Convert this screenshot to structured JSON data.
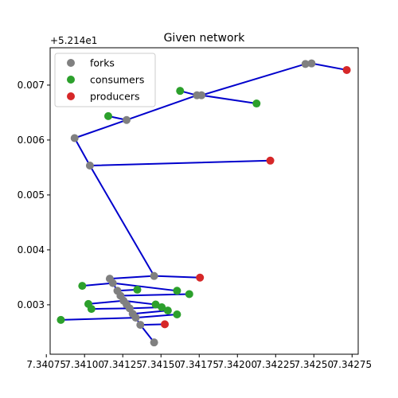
{
  "chart_data": {
    "type": "scatter",
    "title": "Given network",
    "xlabel": "",
    "ylabel": "",
    "xlim": [
      7.340775,
      7.34279
    ],
    "ylim": [
      0.0021,
      0.00768
    ],
    "y_offset_label": "+5.214e1",
    "x_ticks": [
      7.34075,
      7.341,
      7.34125,
      7.3415,
      7.34175,
      7.342,
      7.34225,
      7.3425,
      7.34275
    ],
    "x_tick_labels": [
      "7.34075",
      "7.34100",
      "7.34125",
      "7.34150",
      "7.34175",
      "7.34200",
      "7.34225",
      "7.34250",
      "7.34275"
    ],
    "y_ticks": [
      0.003,
      0.004,
      0.005,
      0.006,
      0.007
    ],
    "y_tick_labels": [
      "0.003",
      "0.004",
      "0.005",
      "0.006",
      "0.007"
    ],
    "grid": false,
    "legend_position": "top-left",
    "edge_color": "#0000cc",
    "series": [
      {
        "name": "forks",
        "color": "#808080",
        "points": [
          [
            7.340935,
            0.006035
          ],
          [
            7.341035,
            0.005535
          ],
          [
            7.341275,
            0.006365
          ],
          [
            7.341735,
            0.006815
          ],
          [
            7.341765,
            0.006815
          ],
          [
            7.342445,
            0.007385
          ],
          [
            7.342485,
            0.007395
          ],
          [
            7.341455,
            0.003525
          ],
          [
            7.341165,
            0.003475
          ],
          [
            7.341185,
            0.003395
          ],
          [
            7.341215,
            0.003255
          ],
          [
            7.341235,
            0.003165
          ],
          [
            7.341255,
            0.003075
          ],
          [
            7.341275,
            0.003005
          ],
          [
            7.341295,
            0.002935
          ],
          [
            7.341315,
            0.002835
          ],
          [
            7.341335,
            0.002765
          ],
          [
            7.341365,
            0.002635
          ],
          [
            7.341455,
            0.002315
          ]
        ]
      },
      {
        "name": "consumers",
        "color": "#2ca02c",
        "points": [
          [
            7.341625,
            0.006895
          ],
          [
            7.342125,
            0.006665
          ],
          [
            7.341155,
            0.006435
          ],
          [
            7.340985,
            0.003345
          ],
          [
            7.341345,
            0.003275
          ],
          [
            7.341605,
            0.003255
          ],
          [
            7.341685,
            0.003195
          ],
          [
            7.341025,
            0.003015
          ],
          [
            7.341045,
            0.002925
          ],
          [
            7.341465,
            0.003005
          ],
          [
            7.341505,
            0.002955
          ],
          [
            7.341545,
            0.002895
          ],
          [
            7.341605,
            0.002825
          ],
          [
            7.340845,
            0.002725
          ]
        ]
      },
      {
        "name": "producers",
        "color": "#d62728",
        "points": [
          [
            7.342715,
            0.007275
          ],
          [
            7.342215,
            0.005625
          ],
          [
            7.341755,
            0.003495
          ],
          [
            7.341525,
            0.002645
          ]
        ]
      }
    ],
    "edges": [
      [
        [
          7.340935,
          0.006035
        ],
        [
          7.341035,
          0.005535
        ]
      ],
      [
        [
          7.341035,
          0.005535
        ],
        [
          7.341455,
          0.003525
        ]
      ],
      [
        [
          7.341035,
          0.005535
        ],
        [
          7.342215,
          0.005625
        ]
      ],
      [
        [
          7.340935,
          0.006035
        ],
        [
          7.341275,
          0.006365
        ]
      ],
      [
        [
          7.341275,
          0.006365
        ],
        [
          7.341155,
          0.006435
        ]
      ],
      [
        [
          7.341275,
          0.006365
        ],
        [
          7.341735,
          0.006815
        ]
      ],
      [
        [
          7.341735,
          0.006815
        ],
        [
          7.341765,
          0.006815
        ]
      ],
      [
        [
          7.341735,
          0.006815
        ],
        [
          7.341625,
          0.006895
        ]
      ],
      [
        [
          7.341765,
          0.006815
        ],
        [
          7.342125,
          0.006665
        ]
      ],
      [
        [
          7.341765,
          0.006815
        ],
        [
          7.342445,
          0.007385
        ]
      ],
      [
        [
          7.342445,
          0.007385
        ],
        [
          7.342485,
          0.007395
        ]
      ],
      [
        [
          7.342485,
          0.007395
        ],
        [
          7.342715,
          0.007275
        ]
      ],
      [
        [
          7.341455,
          0.003525
        ],
        [
          7.341165,
          0.003475
        ]
      ],
      [
        [
          7.341455,
          0.003525
        ],
        [
          7.341755,
          0.003495
        ]
      ],
      [
        [
          7.341165,
          0.003475
        ],
        [
          7.341185,
          0.003395
        ]
      ],
      [
        [
          7.341185,
          0.003395
        ],
        [
          7.341215,
          0.003255
        ]
      ],
      [
        [
          7.341215,
          0.003255
        ],
        [
          7.341235,
          0.003165
        ]
      ],
      [
        [
          7.341235,
          0.003165
        ],
        [
          7.341255,
          0.003075
        ]
      ],
      [
        [
          7.341255,
          0.003075
        ],
        [
          7.341275,
          0.003005
        ]
      ],
      [
        [
          7.341275,
          0.003005
        ],
        [
          7.341295,
          0.002935
        ]
      ],
      [
        [
          7.341295,
          0.002935
        ],
        [
          7.341315,
          0.002835
        ]
      ],
      [
        [
          7.341315,
          0.002835
        ],
        [
          7.341335,
          0.002765
        ]
      ],
      [
        [
          7.341335,
          0.002765
        ],
        [
          7.341365,
          0.002635
        ]
      ],
      [
        [
          7.341365,
          0.002635
        ],
        [
          7.341455,
          0.002315
        ]
      ],
      [
        [
          7.341185,
          0.003395
        ],
        [
          7.340985,
          0.003345
        ]
      ],
      [
        [
          7.341185,
          0.003395
        ],
        [
          7.341605,
          0.003255
        ]
      ],
      [
        [
          7.341215,
          0.003255
        ],
        [
          7.341345,
          0.003275
        ]
      ],
      [
        [
          7.341235,
          0.003165
        ],
        [
          7.341685,
          0.003195
        ]
      ],
      [
        [
          7.341255,
          0.003075
        ],
        [
          7.341025,
          0.003015
        ]
      ],
      [
        [
          7.341255,
          0.003075
        ],
        [
          7.341465,
          0.003005
        ]
      ],
      [
        [
          7.341295,
          0.002935
        ],
        [
          7.341045,
          0.002925
        ]
      ],
      [
        [
          7.341295,
          0.002935
        ],
        [
          7.341505,
          0.002955
        ]
      ],
      [
        [
          7.341315,
          0.002835
        ],
        [
          7.341545,
          0.002895
        ]
      ],
      [
        [
          7.341335,
          0.002765
        ],
        [
          7.341605,
          0.002825
        ]
      ],
      [
        [
          7.341335,
          0.002765
        ],
        [
          7.340845,
          0.002725
        ]
      ],
      [
        [
          7.341365,
          0.002635
        ],
        [
          7.341525,
          0.002645
        ]
      ]
    ]
  }
}
